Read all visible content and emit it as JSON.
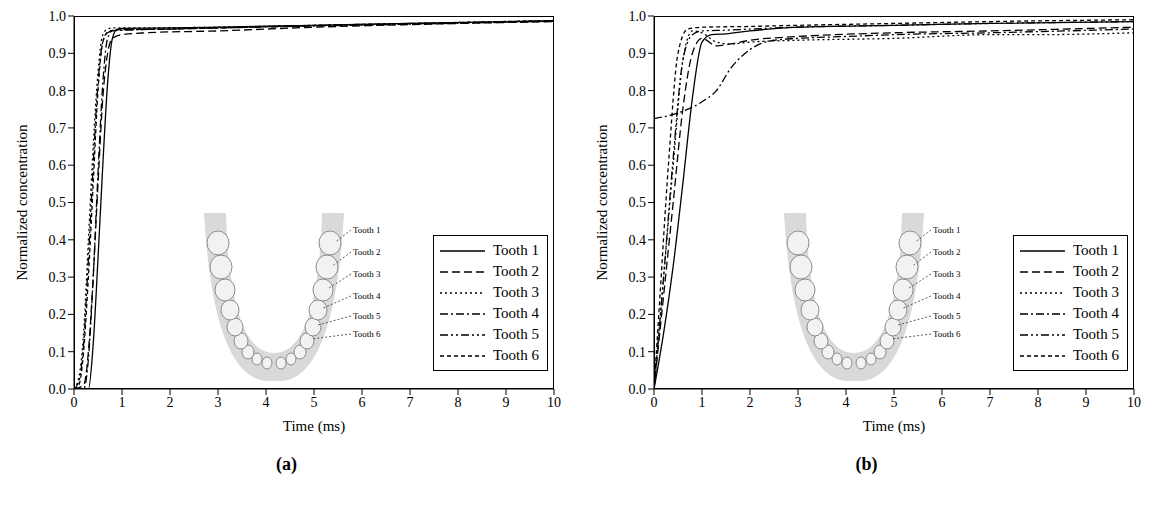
{
  "chart_data": [
    {
      "type": "line",
      "panel": "(a)",
      "x_label": "Time (ms)",
      "y_label": "Normalized concentration",
      "xlim": [
        0,
        10
      ],
      "xticks": [
        0,
        1,
        2,
        3,
        4,
        5,
        6,
        7,
        8,
        9,
        10
      ],
      "ylim": [
        0,
        1
      ],
      "yticks": [
        {
          "value": 0,
          "label": "0.0"
        },
        {
          "value": 0.1,
          "label": "0.1"
        },
        {
          "value": 0.2,
          "label": "0.2"
        },
        {
          "value": 0.3,
          "label": "0.3"
        },
        {
          "value": 0.4,
          "label": "0.4"
        },
        {
          "value": 0.5,
          "label": "0.5"
        },
        {
          "value": 0.6,
          "label": "0.6"
        },
        {
          "value": 0.7,
          "label": "0.7"
        },
        {
          "value": 0.8,
          "label": "0.8"
        },
        {
          "value": 0.9,
          "label": "0.9"
        },
        {
          "value": 1,
          "label": "1.0"
        }
      ],
      "grid": false,
      "legend": "lower right",
      "series": [
        {
          "name": "Tooth 1",
          "color": "#000000",
          "line_style": "solid",
          "x": [
            0,
            0.3,
            0.4,
            0.5,
            0.6,
            0.7,
            0.8,
            0.9,
            1,
            2,
            3,
            5,
            7,
            10
          ],
          "values": [
            0,
            0,
            0.12,
            0.35,
            0.6,
            0.82,
            0.94,
            0.965,
            0.967,
            0.968,
            0.97,
            0.975,
            0.98,
            0.987
          ]
        },
        {
          "name": "Tooth 2",
          "color": "#000000",
          "line_style": "dashed",
          "x": [
            0,
            0.2,
            0.3,
            0.4,
            0.5,
            0.6,
            0.7,
            0.8,
            1,
            1.5,
            3,
            5,
            7,
            10
          ],
          "values": [
            0,
            0.01,
            0.1,
            0.3,
            0.55,
            0.78,
            0.9,
            0.94,
            0.95,
            0.955,
            0.96,
            0.97,
            0.977,
            0.985
          ]
        },
        {
          "name": "Tooth 3",
          "color": "#000000",
          "line_style": "dotted",
          "x": [
            0,
            0.1,
            0.2,
            0.3,
            0.4,
            0.5,
            0.6,
            0.7,
            0.8,
            1,
            3,
            5,
            7,
            10
          ],
          "values": [
            0,
            0.03,
            0.15,
            0.4,
            0.65,
            0.85,
            0.95,
            0.965,
            0.968,
            0.968,
            0.97,
            0.975,
            0.98,
            0.988
          ]
        },
        {
          "name": "Tooth 4",
          "color": "#000000",
          "line_style": "dashdot",
          "x": [
            0,
            0.2,
            0.3,
            0.4,
            0.5,
            0.6,
            0.7,
            0.8,
            1,
            2,
            3,
            5,
            7,
            10
          ],
          "values": [
            0,
            0,
            0.08,
            0.3,
            0.58,
            0.82,
            0.94,
            0.96,
            0.962,
            0.965,
            0.968,
            0.973,
            0.978,
            0.986
          ]
        },
        {
          "name": "Tooth 5",
          "color": "#000000",
          "line_style": "dashdotdot",
          "x": [
            0,
            0.1,
            0.2,
            0.3,
            0.4,
            0.5,
            0.6,
            0.7,
            0.9,
            2,
            3,
            5,
            7,
            10
          ],
          "values": [
            0,
            0.02,
            0.12,
            0.35,
            0.6,
            0.82,
            0.93,
            0.955,
            0.962,
            0.965,
            0.968,
            0.974,
            0.979,
            0.987
          ]
        },
        {
          "name": "Tooth 6",
          "color": "#000000",
          "line_style": "shortdash",
          "x": [
            0,
            0.1,
            0.2,
            0.3,
            0.4,
            0.5,
            0.6,
            0.7,
            0.9,
            2,
            3,
            5,
            7,
            10
          ],
          "values": [
            0,
            0.01,
            0.1,
            0.3,
            0.55,
            0.8,
            0.93,
            0.957,
            0.963,
            0.965,
            0.968,
            0.975,
            0.98,
            0.988
          ]
        }
      ]
    },
    {
      "type": "line",
      "panel": "(b)",
      "x_label": "Time (ms)",
      "y_label": "Normalized concentration",
      "xlim": [
        0,
        10
      ],
      "xticks": [
        0,
        1,
        2,
        3,
        4,
        5,
        6,
        7,
        8,
        9,
        10
      ],
      "ylim": [
        0,
        1
      ],
      "yticks": [
        {
          "value": 0,
          "label": "0.0"
        },
        {
          "value": 0.1,
          "label": "0.1"
        },
        {
          "value": 0.2,
          "label": "0.2"
        },
        {
          "value": 0.3,
          "label": "0.3"
        },
        {
          "value": 0.4,
          "label": "0.4"
        },
        {
          "value": 0.5,
          "label": "0.5"
        },
        {
          "value": 0.6,
          "label": "0.6"
        },
        {
          "value": 0.7,
          "label": "0.7"
        },
        {
          "value": 0.8,
          "label": "0.8"
        },
        {
          "value": 0.9,
          "label": "0.9"
        },
        {
          "value": 1,
          "label": "1.0"
        }
      ],
      "grid": false,
      "legend": "lower right",
      "series": [
        {
          "name": "Tooth 1",
          "color": "#000000",
          "line_style": "solid",
          "x": [
            0,
            0.2,
            0.4,
            0.6,
            0.8,
            1,
            1.2,
            1.5,
            2,
            3,
            5,
            7,
            10
          ],
          "values": [
            0,
            0.15,
            0.33,
            0.55,
            0.78,
            0.93,
            0.95,
            0.952,
            0.96,
            0.97,
            0.975,
            0.98,
            0.985
          ]
        },
        {
          "name": "Tooth 2",
          "color": "#000000",
          "line_style": "dashed",
          "x": [
            0,
            0.2,
            0.4,
            0.6,
            0.8,
            1,
            1.3,
            1.6,
            2,
            3,
            5,
            7,
            10
          ],
          "values": [
            0,
            0.25,
            0.5,
            0.75,
            0.9,
            0.94,
            0.92,
            0.925,
            0.935,
            0.945,
            0.955,
            0.96,
            0.97
          ]
        },
        {
          "name": "Tooth 3",
          "color": "#000000",
          "line_style": "dotted",
          "x": [
            0,
            0.2,
            0.4,
            0.6,
            0.8,
            1,
            1.3,
            1.6,
            2,
            3,
            5,
            7,
            8,
            10
          ],
          "values": [
            0,
            0.3,
            0.6,
            0.88,
            0.96,
            0.955,
            0.93,
            0.925,
            0.93,
            0.935,
            0.94,
            0.95,
            0.95,
            0.955
          ]
        },
        {
          "name": "Tooth 4",
          "color": "#000000",
          "line_style": "dashdot",
          "x": [
            0,
            0.5,
            1,
            1.3,
            1.6,
            2,
            2.5,
            3,
            4,
            5,
            7,
            10
          ],
          "values": [
            0.725,
            0.74,
            0.77,
            0.8,
            0.86,
            0.91,
            0.935,
            0.94,
            0.945,
            0.95,
            0.955,
            0.965
          ]
        },
        {
          "name": "Tooth 5",
          "color": "#000000",
          "line_style": "dashdotdot",
          "x": [
            0,
            0.2,
            0.4,
            0.6,
            0.8,
            1,
            1.5,
            2,
            3,
            5,
            7,
            10
          ],
          "values": [
            0,
            0.3,
            0.62,
            0.88,
            0.95,
            0.96,
            0.962,
            0.965,
            0.97,
            0.975,
            0.98,
            0.985
          ]
        },
        {
          "name": "Tooth 6",
          "color": "#000000",
          "line_style": "shortdash",
          "x": [
            0,
            0.1,
            0.3,
            0.5,
            0.7,
            1,
            2,
            3,
            5,
            7,
            10
          ],
          "values": [
            0,
            0.2,
            0.6,
            0.9,
            0.965,
            0.97,
            0.972,
            0.975,
            0.98,
            0.985,
            0.99
          ]
        }
      ]
    }
  ]
}
